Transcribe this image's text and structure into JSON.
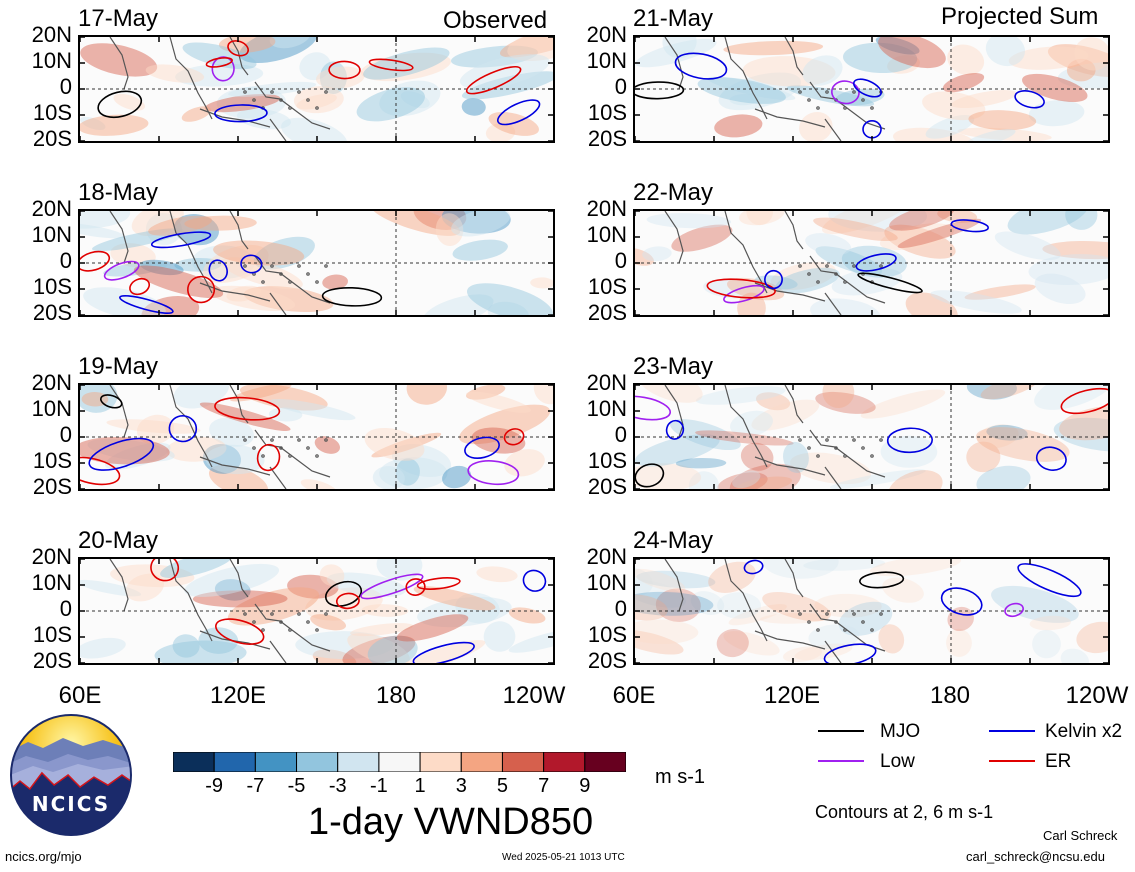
{
  "headers": {
    "left": "Observed",
    "right": "Projected Sum"
  },
  "lat_labels": [
    "20N",
    "10N",
    "0",
    "10S",
    "20S"
  ],
  "lon_labels": [
    "60E",
    "120E",
    "180",
    "120W"
  ],
  "panels": [
    {
      "date": "17-May",
      "col": 0,
      "row": 0
    },
    {
      "date": "18-May",
      "col": 0,
      "row": 1
    },
    {
      "date": "19-May",
      "col": 0,
      "row": 2
    },
    {
      "date": "20-May",
      "col": 0,
      "row": 3
    },
    {
      "date": "21-May",
      "col": 1,
      "row": 0
    },
    {
      "date": "22-May",
      "col": 1,
      "row": 1
    },
    {
      "date": "23-May",
      "col": 1,
      "row": 2
    },
    {
      "date": "24-May",
      "col": 1,
      "row": 3
    }
  ],
  "colorbar": {
    "colors": [
      "#0b2f5a",
      "#2166ac",
      "#4393c3",
      "#92c5de",
      "#d1e5f0",
      "#f7f7f7",
      "#fddbc7",
      "#f4a582",
      "#d6604d",
      "#b2182b",
      "#67001f"
    ],
    "ticks": [
      "-9",
      "-7",
      "-5",
      "-3",
      "-1",
      "1",
      "3",
      "5",
      "7",
      "9"
    ],
    "units": "m s-1"
  },
  "title": "1-day VWND850",
  "legend": {
    "items": [
      {
        "label": "MJO",
        "color": "#000000"
      },
      {
        "label": "Kelvin x2",
        "color": "#0000e0"
      },
      {
        "label": "Low",
        "color": "#a020f0"
      },
      {
        "label": "ER",
        "color": "#e00000"
      }
    ],
    "contours_note": "Contours at 2, 6 m s-1"
  },
  "footer": {
    "left_url": "ncics.org/mjo",
    "timestamp": "Wed 2025-05-21 1013 UTC",
    "author": "Carl Schreck",
    "email": "carl_schreck@ncsu.edu"
  },
  "logo": {
    "text": "NCICS"
  },
  "chart_data": {
    "type": "heatmap",
    "variable": "VWND850",
    "units": "m s-1",
    "x_ticks": [
      "60E",
      "120E",
      "180",
      "120W"
    ],
    "y_ticks": [
      "20N",
      "10N",
      "0",
      "10S",
      "20S"
    ],
    "contour_levels": [
      2,
      6
    ],
    "color_levels": [
      -9,
      -7,
      -5,
      -3,
      -1,
      1,
      3,
      5,
      7,
      9
    ],
    "series": [
      {
        "name": "MJO"
      },
      {
        "name": "Kelvin x2"
      },
      {
        "name": "Low"
      },
      {
        "name": "ER"
      }
    ]
  }
}
